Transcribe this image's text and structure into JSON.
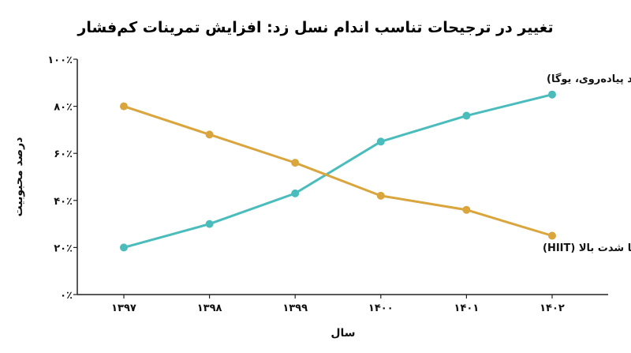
{
  "chart_data": {
    "type": "line",
    "title": "تغییر در ترجیحات تناسب اندام نسل زد: افزایش تمرینات کم‌فشار",
    "xlabel": "سال",
    "ylabel": "درصد محبوبیت",
    "categories": [
      "۱۳۹۷",
      "۱۳۹۸",
      "۱۳۹۹",
      "۱۴۰۰",
      "۱۴۰۱",
      "۱۴۰۲"
    ],
    "ylim": [
      0,
      100
    ],
    "yticks": [
      0,
      20,
      40,
      60,
      80,
      100
    ],
    "ytick_labels": [
      "۰٪",
      "۲۰٪",
      "۴۰٪",
      "۶۰٪",
      "۸۰٪",
      "۱۰۰٪"
    ],
    "grid": false,
    "series": [
      {
        "name": "تمرینات کم‌فشار و طولانی‌مدت (مانند پیاده‌روی، یوگا)",
        "color": "#4bbcbc",
        "values": [
          20,
          30,
          43,
          65,
          76,
          85
        ]
      },
      {
        "name": "تمرینات تناوبی با شدت بالا (HIIT)",
        "color": "#d9a53c",
        "values": [
          80,
          68,
          56,
          42,
          36,
          25
        ]
      }
    ]
  }
}
